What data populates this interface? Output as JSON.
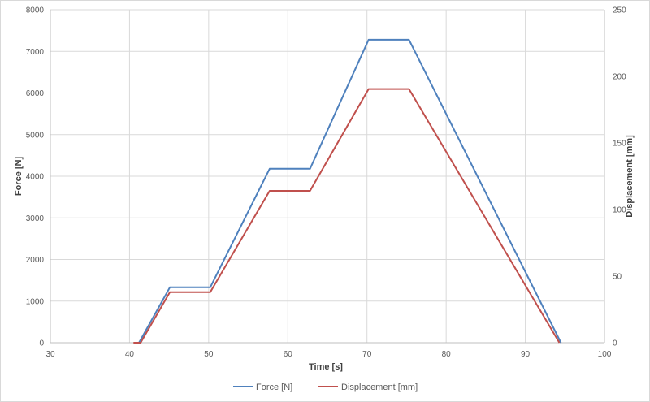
{
  "chart_data": {
    "type": "line",
    "xlabel": "Time [s]",
    "ylabel": "Force [N]",
    "y2label": "Displacement [mm]",
    "xlim": [
      30,
      100
    ],
    "ylim": [
      0,
      8000
    ],
    "y2lim": [
      0,
      250
    ],
    "xticks": [
      "30",
      "40",
      "50",
      "60",
      "70",
      "80",
      "90",
      "100"
    ],
    "yticks": [
      "0",
      "1000",
      "2000",
      "3000",
      "4000",
      "5000",
      "6000",
      "7000",
      "8000"
    ],
    "y2ticks": [
      "0",
      "50",
      "100",
      "150",
      "200",
      "250"
    ],
    "grid": true,
    "legend_position": "bottom",
    "series": [
      {
        "name": "Force [N]",
        "axis": "left",
        "color": "#4f81bd",
        "x": [
          41.2,
          45.1,
          50.2,
          57.7,
          62.8,
          70.2,
          75.3,
          94.5
        ],
        "y": [
          0,
          1330,
          1330,
          4180,
          4180,
          7280,
          7280,
          0
        ]
      },
      {
        "name": "Displacement [mm]",
        "axis": "right",
        "color": "#c0504d",
        "x": [
          40.5,
          41.4,
          45.1,
          50.2,
          57.7,
          62.8,
          70.2,
          75.3,
          94.3
        ],
        "y": [
          0,
          0,
          38,
          38,
          114,
          114,
          190.5,
          190.5,
          0
        ]
      }
    ]
  }
}
